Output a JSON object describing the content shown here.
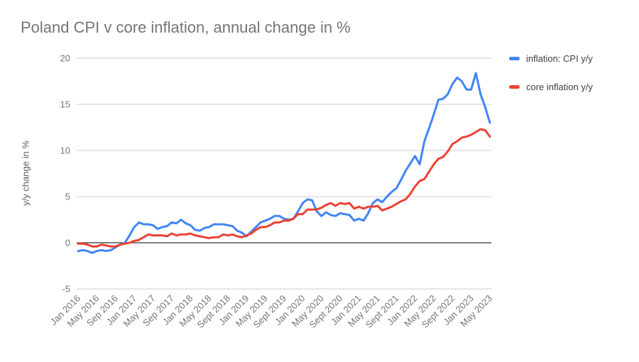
{
  "chart_data": {
    "type": "line",
    "title": "Poland CPI v core inflation, annual change in %",
    "ylabel": "y/y change in %",
    "xlabel": "",
    "ylim": [
      -5,
      20
    ],
    "y_ticks": [
      20,
      15,
      10,
      5,
      0,
      -5
    ],
    "grid": "horizontal",
    "legend_position": "right",
    "frequency": "monthly",
    "x_range": [
      "Jan 2016",
      "May 2023"
    ],
    "x_tick_every": 4,
    "x_tick_labels": [
      "Jan 2016",
      "May 2016",
      "Sep 2016",
      "Jan 2017",
      "May 2017",
      "Sep 2017",
      "Jan 2018",
      "May 2018",
      "Sept 2018",
      "Jan 2019",
      "May 2019",
      "Sept 2019",
      "Jan 2020",
      "May 2020",
      "Sept 2020",
      "Jan 2021",
      "May 2021",
      "Sept 2021",
      "Jan 2022",
      "May 2022",
      "Sept 2022",
      "Jan 2023",
      "May 2023"
    ],
    "colors": {
      "grid": "#cccccc",
      "zero_axis": "#333333",
      "tick_text": "#757575",
      "title_text": "#757575",
      "legend_text": "#3c4043"
    },
    "series": [
      {
        "name": "inflation: CPI y/y",
        "color": "#4285f4",
        "values": [
          -0.9,
          -0.8,
          -0.9,
          -1.1,
          -0.9,
          -0.8,
          -0.9,
          -0.8,
          -0.5,
          -0.2,
          0.0,
          0.8,
          1.7,
          2.2,
          2.0,
          2.0,
          1.9,
          1.5,
          1.7,
          1.8,
          2.2,
          2.1,
          2.5,
          2.1,
          1.9,
          1.4,
          1.3,
          1.6,
          1.7,
          2.0,
          2.0,
          2.0,
          1.9,
          1.8,
          1.3,
          1.1,
          0.7,
          1.2,
          1.7,
          2.2,
          2.4,
          2.6,
          2.9,
          2.9,
          2.6,
          2.5,
          2.6,
          3.4,
          4.3,
          4.7,
          4.6,
          3.4,
          2.9,
          3.3,
          3.0,
          2.9,
          3.2,
          3.1,
          3.0,
          2.4,
          2.6,
          2.4,
          3.2,
          4.3,
          4.7,
          4.4,
          5.0,
          5.5,
          5.9,
          6.8,
          7.8,
          8.6,
          9.4,
          8.5,
          11.0,
          12.4,
          13.9,
          15.5,
          15.6,
          16.1,
          17.2,
          17.9,
          17.5,
          16.6,
          16.6,
          18.4,
          16.1,
          14.7,
          13.0
        ]
      },
      {
        "name": "core inflation y/y",
        "color": "#ea4335",
        "values": [
          -0.1,
          -0.1,
          -0.2,
          -0.4,
          -0.4,
          -0.2,
          -0.3,
          -0.4,
          -0.4,
          -0.2,
          -0.1,
          0.0,
          0.2,
          0.3,
          0.6,
          0.9,
          0.8,
          0.8,
          0.8,
          0.7,
          1.0,
          0.8,
          0.9,
          0.9,
          1.0,
          0.8,
          0.7,
          0.6,
          0.5,
          0.6,
          0.6,
          0.9,
          0.8,
          0.9,
          0.7,
          0.6,
          0.8,
          1.0,
          1.4,
          1.7,
          1.7,
          1.9,
          2.2,
          2.2,
          2.4,
          2.4,
          2.6,
          3.1,
          3.1,
          3.6,
          3.6,
          3.6,
          3.8,
          4.1,
          4.3,
          4.0,
          4.3,
          4.2,
          4.3,
          3.7,
          3.9,
          3.7,
          3.9,
          3.9,
          4.0,
          3.5,
          3.7,
          3.9,
          4.2,
          4.5,
          4.7,
          5.3,
          6.1,
          6.7,
          6.9,
          7.7,
          8.5,
          9.1,
          9.3,
          9.9,
          10.7,
          11.0,
          11.4,
          11.5,
          11.7,
          12.0,
          12.3,
          12.2,
          11.5
        ]
      }
    ]
  }
}
